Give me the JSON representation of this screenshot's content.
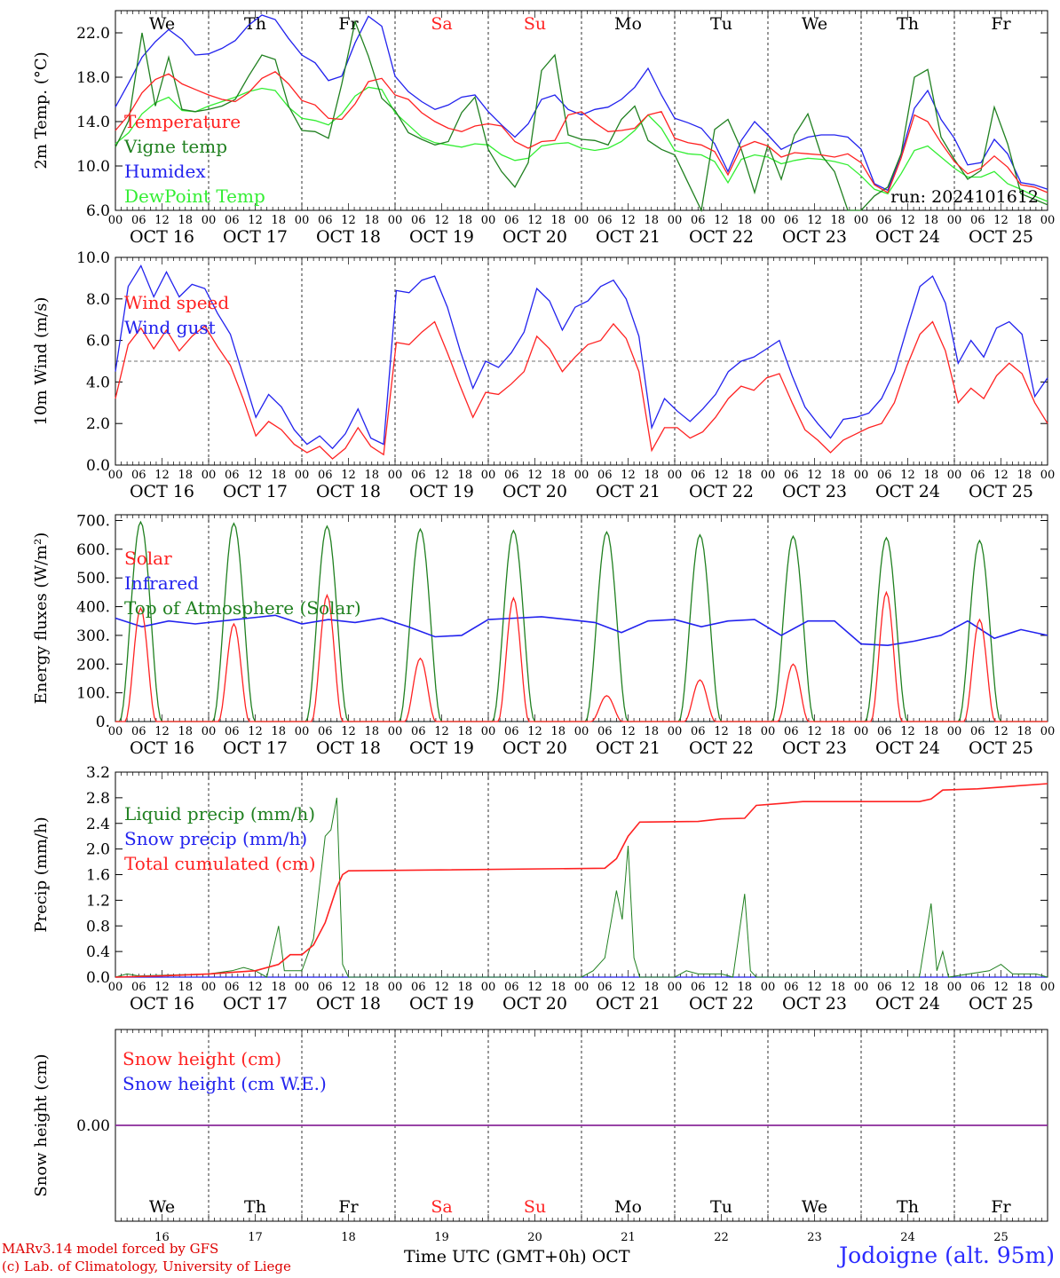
{
  "dates": [
    "OCT 16",
    "OCT 17",
    "OCT 18",
    "OCT 19",
    "OCT 20",
    "OCT 21",
    "OCT 22",
    "OCT 23",
    "OCT 24",
    "OCT 25"
  ],
  "weekdays": [
    "We",
    "Th",
    "Fr",
    "Sa",
    "Su",
    "Mo",
    "Tu",
    "We",
    "Th",
    "Fr"
  ],
  "day_numbers": [
    "16",
    "17",
    "18",
    "19",
    "20",
    "21",
    "22",
    "23",
    "24",
    "25"
  ],
  "hour_ticks": [
    "00",
    "06",
    "12",
    "18"
  ],
  "weekend_color": "#ff2222",
  "run_label": "run: 2024101612",
  "footer": {
    "credit_line1": "MARv3.14 model forced by GFS",
    "credit_line2": "(c) Lab. of Climatology, University of Liege",
    "axis_title": "Time UTC (GMT+0h) OCT",
    "station": "Jodoigne (alt. 95m)"
  },
  "chart_data": [
    {
      "type": "line",
      "ylabel": "2m Temp. (°C)",
      "ylim": [
        6,
        24
      ],
      "yticks": [
        "6.0",
        "10.0",
        "14.0",
        "18.0",
        "22.0"
      ],
      "x_unit": "hours since OCT 16 00 UTC (3-hourly)",
      "series": [
        {
          "name": "Temperature",
          "color": "#ff2222",
          "values": [
            13.2,
            14.6,
            16.6,
            17.8,
            18.3,
            17.4,
            16.9,
            16.4,
            16.0,
            15.8,
            16.6,
            17.9,
            18.5,
            17.4,
            15.9,
            15.5,
            14.3,
            14.2,
            15.6,
            17.6,
            17.9,
            16.4,
            16.0,
            14.8,
            14.0,
            13.4,
            13.1,
            13.6,
            13.8,
            13.6,
            12.2,
            11.6,
            12.2,
            12.3,
            14.6,
            14.9,
            13.9,
            13.1,
            13.2,
            13.4,
            14.6,
            14.9,
            12.5,
            12.1,
            11.9,
            11.3,
            9.2,
            11.7,
            12.2,
            11.8,
            10.8,
            11.2,
            11.1,
            11.0,
            10.8,
            11.1,
            10.3,
            8.3,
            7.6,
            10.7,
            14.6,
            14.0,
            12.1,
            10.4,
            9.3,
            9.8,
            10.9,
            9.9,
            8.3,
            8.1,
            7.6
          ]
        },
        {
          "name": "Vigne temp",
          "color": "#208020",
          "values": [
            11.7,
            14.1,
            22.0,
            15.4,
            19.8,
            15.1,
            14.9,
            15.1,
            15.4,
            16.0,
            18.1,
            20.0,
            19.6,
            15.4,
            13.2,
            13.1,
            12.5,
            17.4,
            23.0,
            19.9,
            16.1,
            15.0,
            13.0,
            12.4,
            11.9,
            12.2,
            14.8,
            16.2,
            11.5,
            9.5,
            8.1,
            10.3,
            18.6,
            20.0,
            12.8,
            12.4,
            12.3,
            11.9,
            14.2,
            15.4,
            12.3,
            11.5,
            11.0,
            8.5,
            5.5,
            13.3,
            14.2,
            11.5,
            7.6,
            11.9,
            8.8,
            12.8,
            14.7,
            11.0,
            9.5,
            6.0,
            3.0,
            7.3,
            8.1,
            11.1,
            18.0,
            18.7,
            12.6,
            10.6,
            8.8,
            9.6,
            15.3,
            12.0,
            7.5,
            7.0,
            6.5
          ]
        },
        {
          "name": "Humidex",
          "color": "#2222ee",
          "values": [
            15.3,
            17.5,
            19.8,
            21.2,
            22.3,
            21.4,
            20.0,
            20.1,
            20.6,
            21.3,
            22.7,
            23.6,
            23.2,
            21.5,
            20.0,
            19.3,
            17.7,
            18.1,
            21.1,
            23.5,
            22.6,
            18.1,
            16.7,
            15.8,
            15.1,
            15.5,
            16.2,
            16.4,
            14.9,
            13.7,
            12.6,
            13.8,
            16.0,
            16.4,
            15.1,
            14.6,
            15.1,
            15.3,
            16.0,
            17.1,
            18.8,
            16.4,
            14.3,
            13.9,
            13.4,
            12.0,
            9.5,
            12.3,
            14.0,
            12.8,
            11.5,
            12.1,
            12.6,
            12.8,
            12.8,
            12.6,
            11.5,
            8.4,
            7.8,
            11.0,
            15.2,
            16.8,
            14.2,
            12.5,
            10.1,
            10.3,
            12.4,
            11.1,
            8.5,
            8.3,
            7.9
          ]
        },
        {
          "name": "DewPoint Temp",
          "color": "#33ee33",
          "values": [
            12.0,
            13.0,
            14.7,
            15.7,
            16.2,
            15.0,
            14.9,
            15.4,
            15.8,
            16.2,
            16.7,
            17.0,
            16.8,
            15.3,
            14.3,
            14.1,
            13.7,
            14.7,
            16.3,
            17.1,
            16.9,
            14.8,
            13.7,
            12.6,
            12.1,
            11.9,
            11.7,
            12.0,
            11.9,
            11.0,
            10.5,
            10.7,
            11.8,
            12.0,
            12.1,
            11.6,
            11.4,
            11.6,
            12.2,
            13.2,
            14.6,
            13.4,
            11.4,
            11.1,
            11.0,
            10.4,
            8.5,
            10.6,
            11.0,
            10.8,
            10.2,
            10.5,
            10.7,
            10.6,
            10.4,
            10.1,
            9.1,
            7.9,
            7.5,
            9.3,
            11.4,
            11.8,
            10.8,
            9.8,
            9.0,
            9.0,
            9.5,
            8.4,
            7.9,
            7.3,
            6.8
          ]
        }
      ]
    },
    {
      "type": "line",
      "ylabel": "10m Wind (m/s)",
      "ylim": [
        0,
        10
      ],
      "yticks": [
        "0.0",
        "2.0",
        "4.0",
        "6.0",
        "8.0",
        "10.0"
      ],
      "reference_line": 5,
      "series": [
        {
          "name": "Wind speed",
          "color": "#ff2222",
          "values": [
            3.2,
            5.8,
            6.6,
            5.6,
            6.5,
            5.5,
            6.2,
            6.7,
            5.7,
            4.8,
            3.2,
            1.4,
            2.1,
            1.7,
            1.0,
            0.6,
            0.9,
            0.3,
            0.8,
            1.8,
            0.9,
            0.5,
            5.9,
            5.8,
            6.4,
            6.9,
            5.4,
            3.8,
            2.3,
            3.5,
            3.4,
            3.9,
            4.5,
            6.2,
            5.6,
            4.5,
            5.2,
            5.8,
            6.0,
            6.8,
            6.1,
            4.5,
            0.7,
            1.8,
            1.8,
            1.3,
            1.6,
            2.3,
            3.2,
            3.8,
            3.6,
            4.2,
            4.4,
            3.0,
            1.7,
            1.2,
            0.6,
            1.2,
            1.5,
            1.8,
            2.0,
            3.0,
            4.8,
            6.3,
            6.9,
            5.5,
            3.0,
            3.7,
            3.2,
            4.3,
            4.9,
            4.4,
            3.0,
            2.0
          ]
        },
        {
          "name": "Wind gust",
          "color": "#2222ee",
          "values": [
            4.5,
            8.6,
            9.6,
            8.1,
            9.3,
            8.1,
            8.7,
            8.5,
            7.3,
            6.3,
            4.3,
            2.3,
            3.4,
            2.8,
            1.7,
            1.0,
            1.4,
            0.8,
            1.5,
            2.7,
            1.3,
            1.0,
            8.4,
            8.3,
            8.9,
            9.1,
            7.6,
            5.5,
            3.7,
            5.0,
            4.7,
            5.4,
            6.4,
            8.5,
            7.9,
            6.5,
            7.6,
            7.9,
            8.6,
            8.9,
            8.0,
            6.2,
            1.8,
            3.2,
            2.6,
            2.1,
            2.7,
            3.4,
            4.5,
            5.0,
            5.2,
            5.6,
            6.0,
            4.3,
            2.8,
            2.0,
            1.3,
            2.2,
            2.3,
            2.5,
            3.2,
            4.5,
            6.6,
            8.6,
            9.1,
            7.8,
            4.9,
            6.0,
            5.2,
            6.6,
            6.9,
            6.3,
            3.3,
            4.2
          ]
        }
      ]
    },
    {
      "type": "line",
      "ylabel": "Energy fluxes (W/m²)",
      "ylim": [
        0,
        720
      ],
      "yticks": [
        "0.",
        "100.",
        "200.",
        "300.",
        "400.",
        "500.",
        "600.",
        "700."
      ],
      "series": [
        {
          "name": "Solar",
          "color": "#ff2222",
          "peak_values": [
            395,
            340,
            440,
            220,
            430,
            90,
            145,
            200,
            450,
            355
          ]
        },
        {
          "name": "Infrared",
          "color": "#2222ee",
          "values": [
            360,
            330,
            350,
            340,
            350,
            360,
            370,
            340,
            355,
            345,
            360,
            330,
            295,
            300,
            355,
            360,
            365,
            355,
            345,
            310,
            350,
            355,
            330,
            350,
            355,
            300,
            350,
            350,
            270,
            265,
            280,
            300,
            350,
            290,
            320,
            300
          ]
        },
        {
          "name": "Top of Atmosphere (Solar)",
          "color": "#208020",
          "peak_values": [
            695,
            690,
            680,
            670,
            665,
            660,
            650,
            645,
            640,
            630
          ]
        }
      ]
    },
    {
      "type": "line",
      "ylabel": "Precip (mm/h)",
      "ylim": [
        0,
        3.2
      ],
      "yticks": [
        "0.0",
        "0.4",
        "0.8",
        "1.2",
        "1.6",
        "2.0",
        "2.4",
        "2.8",
        "3.2"
      ],
      "series": [
        {
          "name": "Liquid precip (mm/h)",
          "color": "#208020",
          "points": [
            [
              0,
              0
            ],
            [
              6,
              0.05
            ],
            [
              12,
              0.02
            ],
            [
              48,
              0.05
            ],
            [
              60,
              0.1
            ],
            [
              66,
              0.15
            ],
            [
              72,
              0.1
            ],
            [
              78,
              0
            ],
            [
              84,
              0.8
            ],
            [
              87,
              0.1
            ],
            [
              96,
              0.1
            ],
            [
              102,
              0.6
            ],
            [
              108,
              2.2
            ],
            [
              111,
              2.3
            ],
            [
              114,
              2.8
            ],
            [
              117,
              0.2
            ],
            [
              120,
              0
            ],
            [
              240,
              0
            ],
            [
              246,
              0.1
            ],
            [
              252,
              0.3
            ],
            [
              258,
              1.35
            ],
            [
              261,
              0.9
            ],
            [
              264,
              2.05
            ],
            [
              267,
              0.3
            ],
            [
              270,
              0
            ],
            [
              288,
              0
            ],
            [
              294,
              0.1
            ],
            [
              300,
              0.05
            ],
            [
              312,
              0.05
            ],
            [
              318,
              0
            ],
            [
              324,
              1.3
            ],
            [
              327,
              0.1
            ],
            [
              330,
              0
            ],
            [
              414,
              0
            ],
            [
              420,
              1.15
            ],
            [
              423,
              0.1
            ],
            [
              426,
              0.4
            ],
            [
              429,
              0
            ],
            [
              450,
              0.1
            ],
            [
              456,
              0.2
            ],
            [
              462,
              0.05
            ],
            [
              474,
              0.05
            ],
            [
              480,
              0
            ]
          ]
        },
        {
          "name": "Snow precip (mm/h)",
          "color": "#2222ee",
          "points": [
            [
              0,
              0
            ],
            [
              480,
              0
            ]
          ]
        },
        {
          "name": "Total cumulated (cm)",
          "color": "#ff2222",
          "points": [
            [
              0,
              0
            ],
            [
              24,
              0.02
            ],
            [
              48,
              0.05
            ],
            [
              72,
              0.1
            ],
            [
              84,
              0.2
            ],
            [
              90,
              0.35
            ],
            [
              96,
              0.35
            ],
            [
              102,
              0.5
            ],
            [
              108,
              0.85
            ],
            [
              114,
              1.4
            ],
            [
              117,
              1.6
            ],
            [
              120,
              1.66
            ],
            [
              252,
              1.7
            ],
            [
              258,
              1.85
            ],
            [
              264,
              2.2
            ],
            [
              270,
              2.42
            ],
            [
              300,
              2.43
            ],
            [
              312,
              2.47
            ],
            [
              324,
              2.48
            ],
            [
              330,
              2.68
            ],
            [
              342,
              2.71
            ],
            [
              354,
              2.74
            ],
            [
              414,
              2.74
            ],
            [
              420,
              2.78
            ],
            [
              426,
              2.92
            ],
            [
              444,
              2.94
            ],
            [
              462,
              2.98
            ],
            [
              480,
              3.02
            ]
          ]
        }
      ]
    },
    {
      "type": "line",
      "ylabel": "Snow height (cm)",
      "yticks": [
        "0.00"
      ],
      "series": [
        {
          "name": "Snow height (cm)",
          "color": "#ff2222",
          "values": [
            0,
            0
          ]
        },
        {
          "name": "Snow height (cm W.E.)",
          "color": "#2222ee",
          "values": [
            0,
            0
          ]
        }
      ]
    }
  ]
}
